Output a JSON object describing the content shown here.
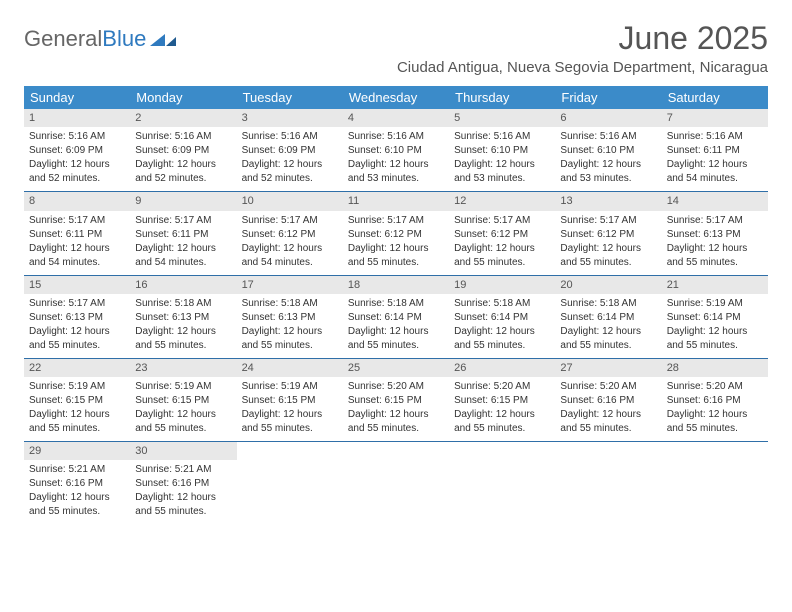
{
  "logo": {
    "part1": "General",
    "part2": "Blue"
  },
  "header": {
    "month_title": "June 2025",
    "location": "Ciudad Antigua, Nueva Segovia Department, Nicaragua"
  },
  "weekdays": [
    "Sunday",
    "Monday",
    "Tuesday",
    "Wednesday",
    "Thursday",
    "Friday",
    "Saturday"
  ],
  "colors": {
    "header_bar": "#3b8bc9",
    "week_border": "#2f6fa8",
    "day_header_bg": "#e8e8e8",
    "text": "#333333",
    "title_text": "#555555",
    "logo_gray": "#666666",
    "logo_blue": "#2f7abf"
  },
  "weeks": [
    [
      {
        "n": "1",
        "sunrise": "Sunrise: 5:16 AM",
        "sunset": "Sunset: 6:09 PM",
        "d1": "Daylight: 12 hours",
        "d2": "and 52 minutes."
      },
      {
        "n": "2",
        "sunrise": "Sunrise: 5:16 AM",
        "sunset": "Sunset: 6:09 PM",
        "d1": "Daylight: 12 hours",
        "d2": "and 52 minutes."
      },
      {
        "n": "3",
        "sunrise": "Sunrise: 5:16 AM",
        "sunset": "Sunset: 6:09 PM",
        "d1": "Daylight: 12 hours",
        "d2": "and 52 minutes."
      },
      {
        "n": "4",
        "sunrise": "Sunrise: 5:16 AM",
        "sunset": "Sunset: 6:10 PM",
        "d1": "Daylight: 12 hours",
        "d2": "and 53 minutes."
      },
      {
        "n": "5",
        "sunrise": "Sunrise: 5:16 AM",
        "sunset": "Sunset: 6:10 PM",
        "d1": "Daylight: 12 hours",
        "d2": "and 53 minutes."
      },
      {
        "n": "6",
        "sunrise": "Sunrise: 5:16 AM",
        "sunset": "Sunset: 6:10 PM",
        "d1": "Daylight: 12 hours",
        "d2": "and 53 minutes."
      },
      {
        "n": "7",
        "sunrise": "Sunrise: 5:16 AM",
        "sunset": "Sunset: 6:11 PM",
        "d1": "Daylight: 12 hours",
        "d2": "and 54 minutes."
      }
    ],
    [
      {
        "n": "8",
        "sunrise": "Sunrise: 5:17 AM",
        "sunset": "Sunset: 6:11 PM",
        "d1": "Daylight: 12 hours",
        "d2": "and 54 minutes."
      },
      {
        "n": "9",
        "sunrise": "Sunrise: 5:17 AM",
        "sunset": "Sunset: 6:11 PM",
        "d1": "Daylight: 12 hours",
        "d2": "and 54 minutes."
      },
      {
        "n": "10",
        "sunrise": "Sunrise: 5:17 AM",
        "sunset": "Sunset: 6:12 PM",
        "d1": "Daylight: 12 hours",
        "d2": "and 54 minutes."
      },
      {
        "n": "11",
        "sunrise": "Sunrise: 5:17 AM",
        "sunset": "Sunset: 6:12 PM",
        "d1": "Daylight: 12 hours",
        "d2": "and 55 minutes."
      },
      {
        "n": "12",
        "sunrise": "Sunrise: 5:17 AM",
        "sunset": "Sunset: 6:12 PM",
        "d1": "Daylight: 12 hours",
        "d2": "and 55 minutes."
      },
      {
        "n": "13",
        "sunrise": "Sunrise: 5:17 AM",
        "sunset": "Sunset: 6:12 PM",
        "d1": "Daylight: 12 hours",
        "d2": "and 55 minutes."
      },
      {
        "n": "14",
        "sunrise": "Sunrise: 5:17 AM",
        "sunset": "Sunset: 6:13 PM",
        "d1": "Daylight: 12 hours",
        "d2": "and 55 minutes."
      }
    ],
    [
      {
        "n": "15",
        "sunrise": "Sunrise: 5:17 AM",
        "sunset": "Sunset: 6:13 PM",
        "d1": "Daylight: 12 hours",
        "d2": "and 55 minutes."
      },
      {
        "n": "16",
        "sunrise": "Sunrise: 5:18 AM",
        "sunset": "Sunset: 6:13 PM",
        "d1": "Daylight: 12 hours",
        "d2": "and 55 minutes."
      },
      {
        "n": "17",
        "sunrise": "Sunrise: 5:18 AM",
        "sunset": "Sunset: 6:13 PM",
        "d1": "Daylight: 12 hours",
        "d2": "and 55 minutes."
      },
      {
        "n": "18",
        "sunrise": "Sunrise: 5:18 AM",
        "sunset": "Sunset: 6:14 PM",
        "d1": "Daylight: 12 hours",
        "d2": "and 55 minutes."
      },
      {
        "n": "19",
        "sunrise": "Sunrise: 5:18 AM",
        "sunset": "Sunset: 6:14 PM",
        "d1": "Daylight: 12 hours",
        "d2": "and 55 minutes."
      },
      {
        "n": "20",
        "sunrise": "Sunrise: 5:18 AM",
        "sunset": "Sunset: 6:14 PM",
        "d1": "Daylight: 12 hours",
        "d2": "and 55 minutes."
      },
      {
        "n": "21",
        "sunrise": "Sunrise: 5:19 AM",
        "sunset": "Sunset: 6:14 PM",
        "d1": "Daylight: 12 hours",
        "d2": "and 55 minutes."
      }
    ],
    [
      {
        "n": "22",
        "sunrise": "Sunrise: 5:19 AM",
        "sunset": "Sunset: 6:15 PM",
        "d1": "Daylight: 12 hours",
        "d2": "and 55 minutes."
      },
      {
        "n": "23",
        "sunrise": "Sunrise: 5:19 AM",
        "sunset": "Sunset: 6:15 PM",
        "d1": "Daylight: 12 hours",
        "d2": "and 55 minutes."
      },
      {
        "n": "24",
        "sunrise": "Sunrise: 5:19 AM",
        "sunset": "Sunset: 6:15 PM",
        "d1": "Daylight: 12 hours",
        "d2": "and 55 minutes."
      },
      {
        "n": "25",
        "sunrise": "Sunrise: 5:20 AM",
        "sunset": "Sunset: 6:15 PM",
        "d1": "Daylight: 12 hours",
        "d2": "and 55 minutes."
      },
      {
        "n": "26",
        "sunrise": "Sunrise: 5:20 AM",
        "sunset": "Sunset: 6:15 PM",
        "d1": "Daylight: 12 hours",
        "d2": "and 55 minutes."
      },
      {
        "n": "27",
        "sunrise": "Sunrise: 5:20 AM",
        "sunset": "Sunset: 6:16 PM",
        "d1": "Daylight: 12 hours",
        "d2": "and 55 minutes."
      },
      {
        "n": "28",
        "sunrise": "Sunrise: 5:20 AM",
        "sunset": "Sunset: 6:16 PM",
        "d1": "Daylight: 12 hours",
        "d2": "and 55 minutes."
      }
    ],
    [
      {
        "n": "29",
        "sunrise": "Sunrise: 5:21 AM",
        "sunset": "Sunset: 6:16 PM",
        "d1": "Daylight: 12 hours",
        "d2": "and 55 minutes."
      },
      {
        "n": "30",
        "sunrise": "Sunrise: 5:21 AM",
        "sunset": "Sunset: 6:16 PM",
        "d1": "Daylight: 12 hours",
        "d2": "and 55 minutes."
      },
      {
        "empty": true
      },
      {
        "empty": true
      },
      {
        "empty": true
      },
      {
        "empty": true
      },
      {
        "empty": true
      }
    ]
  ]
}
